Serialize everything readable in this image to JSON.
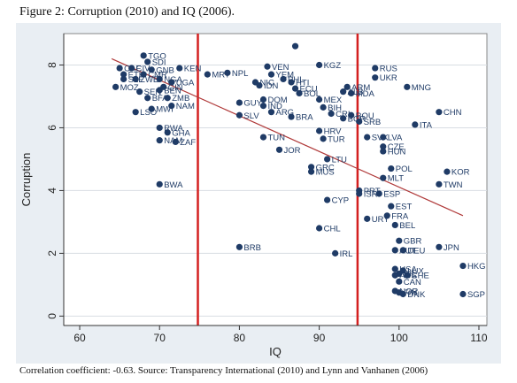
{
  "figure": {
    "title": "Figure 2: Corruption (2010) and IQ (2006).",
    "caption": "Correlation coefficient: -0.63. Source: Transparency International (2010) and Lynn and Vanhanen (2006)"
  },
  "chart_data": {
    "type": "scatter",
    "title": "Figure 2: Corruption (2010) and IQ (2006).",
    "xlabel": "IQ",
    "ylabel": "Corruption",
    "xlim": [
      58,
      111
    ],
    "ylim": [
      -0.3,
      9
    ],
    "xticks": [
      60,
      70,
      80,
      90,
      100,
      110
    ],
    "yticks": [
      0,
      2,
      4,
      6,
      8
    ],
    "grid": "horizontal",
    "colors": {
      "points": "#1f3b66",
      "fit_line": "#b03a3a",
      "vlines": "#d42020",
      "plot_bg": "#ffffff",
      "grid": "#d8dde3",
      "outer_bg": "#e9eef3"
    },
    "vertical_lines": [
      74.8,
      94.8
    ],
    "fit_line": {
      "x": [
        64,
        108
      ],
      "y": [
        8.2,
        3.2
      ]
    },
    "points": [
      {
        "x": 68,
        "y": 8.3,
        "label": "TGO"
      },
      {
        "x": 68.5,
        "y": 8.1,
        "label": "SDI"
      },
      {
        "x": 65,
        "y": 7.9,
        "label": "CAF"
      },
      {
        "x": 66.5,
        "y": 7.9,
        "label": "CIV"
      },
      {
        "x": 69,
        "y": 7.85,
        "label": "GNB"
      },
      {
        "x": 72.5,
        "y": 7.9,
        "label": "KEN"
      },
      {
        "x": 65.5,
        "y": 7.7,
        "label": "ETH"
      },
      {
        "x": 68,
        "y": 7.7,
        "label": "CMR"
      },
      {
        "x": 65.5,
        "y": 7.55,
        "label": "SLE"
      },
      {
        "x": 67,
        "y": 7.55,
        "label": "ZWE"
      },
      {
        "x": 70,
        "y": 7.55,
        "label": "NGA"
      },
      {
        "x": 71.5,
        "y": 7.45,
        "label": "UGA"
      },
      {
        "x": 64.5,
        "y": 7.3,
        "label": "MOZ"
      },
      {
        "x": 70.5,
        "y": 7.3,
        "label": "GIN"
      },
      {
        "x": 67.5,
        "y": 7.15,
        "label": "SEN"
      },
      {
        "x": 70,
        "y": 7.2,
        "label": "BEN"
      },
      {
        "x": 68.5,
        "y": 6.95,
        "label": "BFA"
      },
      {
        "x": 71,
        "y": 6.95,
        "label": "ZMB"
      },
      {
        "x": 71.5,
        "y": 6.7,
        "label": "NAM"
      },
      {
        "x": 69,
        "y": 6.6,
        "label": "MWI"
      },
      {
        "x": 67,
        "y": 6.5,
        "label": "LSO"
      },
      {
        "x": 70,
        "y": 6.0,
        "label": "RWA"
      },
      {
        "x": 71,
        "y": 5.85,
        "label": "GHA"
      },
      {
        "x": 70,
        "y": 5.6,
        "label": "NAM"
      },
      {
        "x": 72,
        "y": 5.55,
        "label": "ZAF"
      },
      {
        "x": 70,
        "y": 4.2,
        "label": "BWA"
      },
      {
        "x": 76,
        "y": 7.7,
        "label": "MRT"
      },
      {
        "x": 78.5,
        "y": 7.75,
        "label": "NPL"
      },
      {
        "x": 83.5,
        "y": 7.95,
        "label": "VEN"
      },
      {
        "x": 84,
        "y": 7.7,
        "label": "YEM"
      },
      {
        "x": 85.5,
        "y": 7.55,
        "label": "PHL"
      },
      {
        "x": 82,
        "y": 7.45,
        "label": "NIC"
      },
      {
        "x": 82.5,
        "y": 7.35,
        "label": "IDN"
      },
      {
        "x": 86.5,
        "y": 7.45,
        "label": "HTI"
      },
      {
        "x": 87,
        "y": 7.25,
        "label": "ECU"
      },
      {
        "x": 87.5,
        "y": 7.1,
        "label": "BOL"
      },
      {
        "x": 87,
        "y": 8.6,
        "label": ""
      },
      {
        "x": 90,
        "y": 8.0,
        "label": "KGZ"
      },
      {
        "x": 83,
        "y": 6.9,
        "label": "DOM"
      },
      {
        "x": 83,
        "y": 6.7,
        "label": "IND"
      },
      {
        "x": 80,
        "y": 6.8,
        "label": "GUY"
      },
      {
        "x": 84,
        "y": 6.5,
        "label": "ARG"
      },
      {
        "x": 86.5,
        "y": 6.35,
        "label": "BRA"
      },
      {
        "x": 80,
        "y": 6.4,
        "label": "SLV"
      },
      {
        "x": 90,
        "y": 6.9,
        "label": "MEX"
      },
      {
        "x": 90.5,
        "y": 6.65,
        "label": "BIH"
      },
      {
        "x": 91.5,
        "y": 6.45,
        "label": "CRI"
      },
      {
        "x": 93,
        "y": 6.3,
        "label": "BGR"
      },
      {
        "x": 94,
        "y": 6.4,
        "label": "ROU"
      },
      {
        "x": 93.5,
        "y": 7.3,
        "label": "ARM"
      },
      {
        "x": 94,
        "y": 7.1,
        "label": "MDA"
      },
      {
        "x": 93,
        "y": 7.15,
        "label": "ALB"
      },
      {
        "x": 95,
        "y": 6.2,
        "label": "SRB"
      },
      {
        "x": 97,
        "y": 7.9,
        "label": "RUS"
      },
      {
        "x": 97,
        "y": 7.6,
        "label": "UKR"
      },
      {
        "x": 101,
        "y": 7.3,
        "label": "MNG"
      },
      {
        "x": 105,
        "y": 6.5,
        "label": "CHN"
      },
      {
        "x": 102,
        "y": 6.1,
        "label": "ITA"
      },
      {
        "x": 83,
        "y": 5.7,
        "label": "TUN"
      },
      {
        "x": 85,
        "y": 5.3,
        "label": "JOR"
      },
      {
        "x": 90,
        "y": 5.9,
        "label": "HRV"
      },
      {
        "x": 90.5,
        "y": 5.65,
        "label": "TUR"
      },
      {
        "x": 96,
        "y": 5.7,
        "label": "SVK"
      },
      {
        "x": 98,
        "y": 5.7,
        "label": "LVA"
      },
      {
        "x": 98,
        "y": 5.4,
        "label": "CZE"
      },
      {
        "x": 98,
        "y": 5.25,
        "label": "HUN"
      },
      {
        "x": 91,
        "y": 5.0,
        "label": "LTU"
      },
      {
        "x": 89,
        "y": 4.75,
        "label": "GRC"
      },
      {
        "x": 89,
        "y": 4.6,
        "label": "MUS"
      },
      {
        "x": 99,
        "y": 4.7,
        "label": "POL"
      },
      {
        "x": 98,
        "y": 4.4,
        "label": "MLT"
      },
      {
        "x": 106,
        "y": 4.6,
        "label": "KOR"
      },
      {
        "x": 105,
        "y": 4.2,
        "label": "TWN"
      },
      {
        "x": 91,
        "y": 3.7,
        "label": "CYP"
      },
      {
        "x": 95,
        "y": 4.0,
        "label": "PRT"
      },
      {
        "x": 95,
        "y": 3.9,
        "label": "ISR"
      },
      {
        "x": 97.5,
        "y": 3.9,
        "label": "ESP"
      },
      {
        "x": 99,
        "y": 3.5,
        "label": "EST"
      },
      {
        "x": 98.5,
        "y": 3.2,
        "label": "FRA"
      },
      {
        "x": 96,
        "y": 3.1,
        "label": "URY"
      },
      {
        "x": 99.5,
        "y": 2.9,
        "label": "BEL"
      },
      {
        "x": 90,
        "y": 2.8,
        "label": "CHL"
      },
      {
        "x": 100,
        "y": 2.4,
        "label": "GBR"
      },
      {
        "x": 99.5,
        "y": 2.1,
        "label": "AUT"
      },
      {
        "x": 100.5,
        "y": 2.1,
        "label": "DEU"
      },
      {
        "x": 105,
        "y": 2.2,
        "label": "JPN"
      },
      {
        "x": 80,
        "y": 2.2,
        "label": "BRB"
      },
      {
        "x": 92,
        "y": 2.0,
        "label": "IRL"
      },
      {
        "x": 108,
        "y": 1.6,
        "label": "HKG"
      },
      {
        "x": 99.5,
        "y": 1.5,
        "label": "USA"
      },
      {
        "x": 100.5,
        "y": 1.45,
        "label": "LUX"
      },
      {
        "x": 100,
        "y": 1.35,
        "label": "ISL"
      },
      {
        "x": 99.5,
        "y": 1.3,
        "label": "AUS"
      },
      {
        "x": 101,
        "y": 1.3,
        "label": "CHE"
      },
      {
        "x": 100,
        "y": 1.1,
        "label": "CAN"
      },
      {
        "x": 99.5,
        "y": 0.8,
        "label": "NOR"
      },
      {
        "x": 100,
        "y": 0.75,
        "label": "FIN"
      },
      {
        "x": 100.5,
        "y": 0.7,
        "label": "DNK"
      },
      {
        "x": 108,
        "y": 0.7,
        "label": "SGP"
      }
    ]
  }
}
